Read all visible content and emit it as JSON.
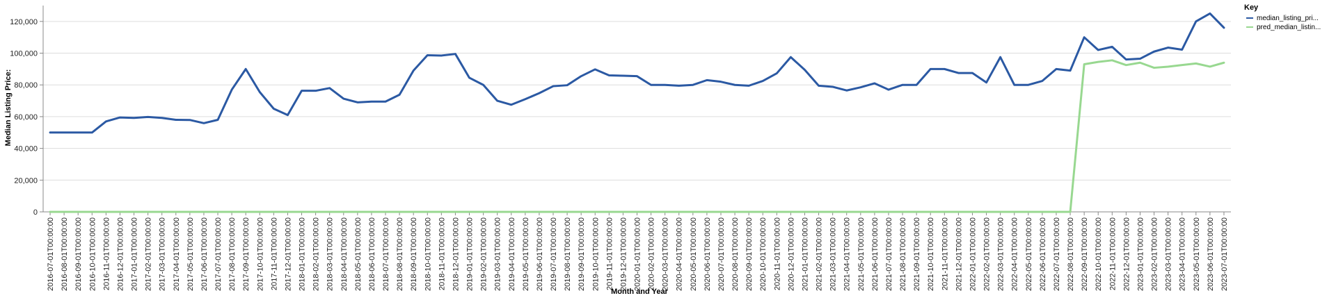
{
  "chart_data": {
    "type": "line",
    "xlabel": "Month and Year",
    "ylabel": "Median Listing Price:",
    "ylim": [
      0,
      130000
    ],
    "yticks": [
      0,
      20000,
      40000,
      60000,
      80000,
      100000,
      120000
    ],
    "ytick_labels": [
      "0",
      "20,000",
      "40,000",
      "60,000",
      "80,000",
      "100,000",
      "120,000"
    ],
    "grid": true,
    "legend_title": "Key",
    "legend_position": "top-right",
    "x": [
      "2016-07-01T00:00:00",
      "2016-08-01T00:00:00",
      "2016-09-01T00:00:00",
      "2016-10-01T00:00:00",
      "2016-11-01T00:00:00",
      "2016-12-01T00:00:00",
      "2017-01-01T00:00:00",
      "2017-02-01T00:00:00",
      "2017-03-01T00:00:00",
      "2017-04-01T00:00:00",
      "2017-05-01T00:00:00",
      "2017-06-01T00:00:00",
      "2017-07-01T00:00:00",
      "2017-08-01T00:00:00",
      "2017-09-01T00:00:00",
      "2017-10-01T00:00:00",
      "2017-11-01T00:00:00",
      "2017-12-01T00:00:00",
      "2018-01-01T00:00:00",
      "2018-02-01T00:00:00",
      "2018-03-01T00:00:00",
      "2018-04-01T00:00:00",
      "2018-05-01T00:00:00",
      "2018-06-01T00:00:00",
      "2018-07-01T00:00:00",
      "2018-08-01T00:00:00",
      "2018-09-01T00:00:00",
      "2018-10-01T00:00:00",
      "2018-11-01T00:00:00",
      "2018-12-01T00:00:00",
      "2019-01-01T00:00:00",
      "2019-02-01T00:00:00",
      "2019-03-01T00:00:00",
      "2019-04-01T00:00:00",
      "2019-05-01T00:00:00",
      "2019-06-01T00:00:00",
      "2019-07-01T00:00:00",
      "2019-08-01T00:00:00",
      "2019-09-01T00:00:00",
      "2019-10-01T00:00:00",
      "2019-11-01T00:00:00",
      "2019-12-01T00:00:00",
      "2020-01-01T00:00:00",
      "2020-02-01T00:00:00",
      "2020-03-01T00:00:00",
      "2020-04-01T00:00:00",
      "2020-05-01T00:00:00",
      "2020-06-01T00:00:00",
      "2020-07-01T00:00:00",
      "2020-08-01T00:00:00",
      "2020-09-01T00:00:00",
      "2020-10-01T00:00:00",
      "2020-11-01T00:00:00",
      "2020-12-01T00:00:00",
      "2021-01-01T00:00:00",
      "2021-02-01T00:00:00",
      "2021-03-01T00:00:00",
      "2021-04-01T00:00:00",
      "2021-05-01T00:00:00",
      "2021-06-01T00:00:00",
      "2021-07-01T00:00:00",
      "2021-08-01T00:00:00",
      "2021-09-01T00:00:00",
      "2021-10-01T00:00:00",
      "2021-11-01T00:00:00",
      "2021-12-01T00:00:00",
      "2022-01-01T00:00:00",
      "2022-02-01T00:00:00",
      "2022-03-01T00:00:00",
      "2022-04-01T00:00:00",
      "2022-05-01T00:00:00",
      "2022-06-01T00:00:00",
      "2022-07-01T00:00:00",
      "2022-08-01T00:00:00",
      "2022-09-01T00:00:00",
      "2022-10-01T00:00:00",
      "2022-11-01T00:00:00",
      "2022-12-01T00:00:00",
      "2023-01-01T00:00:00",
      "2023-02-01T00:00:00",
      "2023-03-01T00:00:00",
      "2023-04-01T00:00:00",
      "2023-05-01T00:00:00",
      "2023-06-01T00:00:00",
      "2023-07-01T00:00:00"
    ],
    "series": [
      {
        "name": "median_listing_pri...",
        "color": "#2b59a3",
        "values": [
          50000,
          50000,
          50000,
          50000,
          57000,
          59500,
          59200,
          59800,
          59200,
          58000,
          57900,
          55900,
          58000,
          77000,
          90000,
          75500,
          65000,
          61000,
          76300,
          76300,
          78000,
          71300,
          69000,
          69500,
          69500,
          73800,
          89000,
          98700,
          98500,
          99500,
          84500,
          80000,
          70000,
          67500,
          71000,
          74800,
          79200,
          79800,
          85500,
          89800,
          86000,
          85800,
          85500,
          80000,
          80000,
          79500,
          80000,
          83000,
          82000,
          80000,
          79500,
          82500,
          87300,
          97500,
          89500,
          79500,
          78800,
          76500,
          78500,
          81000,
          77000,
          80000,
          80000,
          90000,
          90000,
          87500,
          87500,
          81500,
          97500,
          80000,
          80000,
          82500,
          90000,
          89000,
          110000,
          102000,
          104000,
          96000,
          96500,
          101000,
          103500,
          102200,
          120000,
          125000,
          116000
        ]
      },
      {
        "name": "pred_median_listin...",
        "color": "#98d890",
        "values": [
          0,
          0,
          0,
          0,
          0,
          0,
          0,
          0,
          0,
          0,
          0,
          0,
          0,
          0,
          0,
          0,
          0,
          0,
          0,
          0,
          0,
          0,
          0,
          0,
          0,
          0,
          0,
          0,
          0,
          0,
          0,
          0,
          0,
          0,
          0,
          0,
          0,
          0,
          0,
          0,
          0,
          0,
          0,
          0,
          0,
          0,
          0,
          0,
          0,
          0,
          0,
          0,
          0,
          0,
          0,
          0,
          0,
          0,
          0,
          0,
          0,
          0,
          0,
          0,
          0,
          0,
          0,
          0,
          0,
          0,
          0,
          0,
          0,
          0,
          93000,
          94500,
          95500,
          92500,
          94000,
          90800,
          91500,
          92500,
          93500,
          91500,
          94000
        ]
      }
    ]
  }
}
